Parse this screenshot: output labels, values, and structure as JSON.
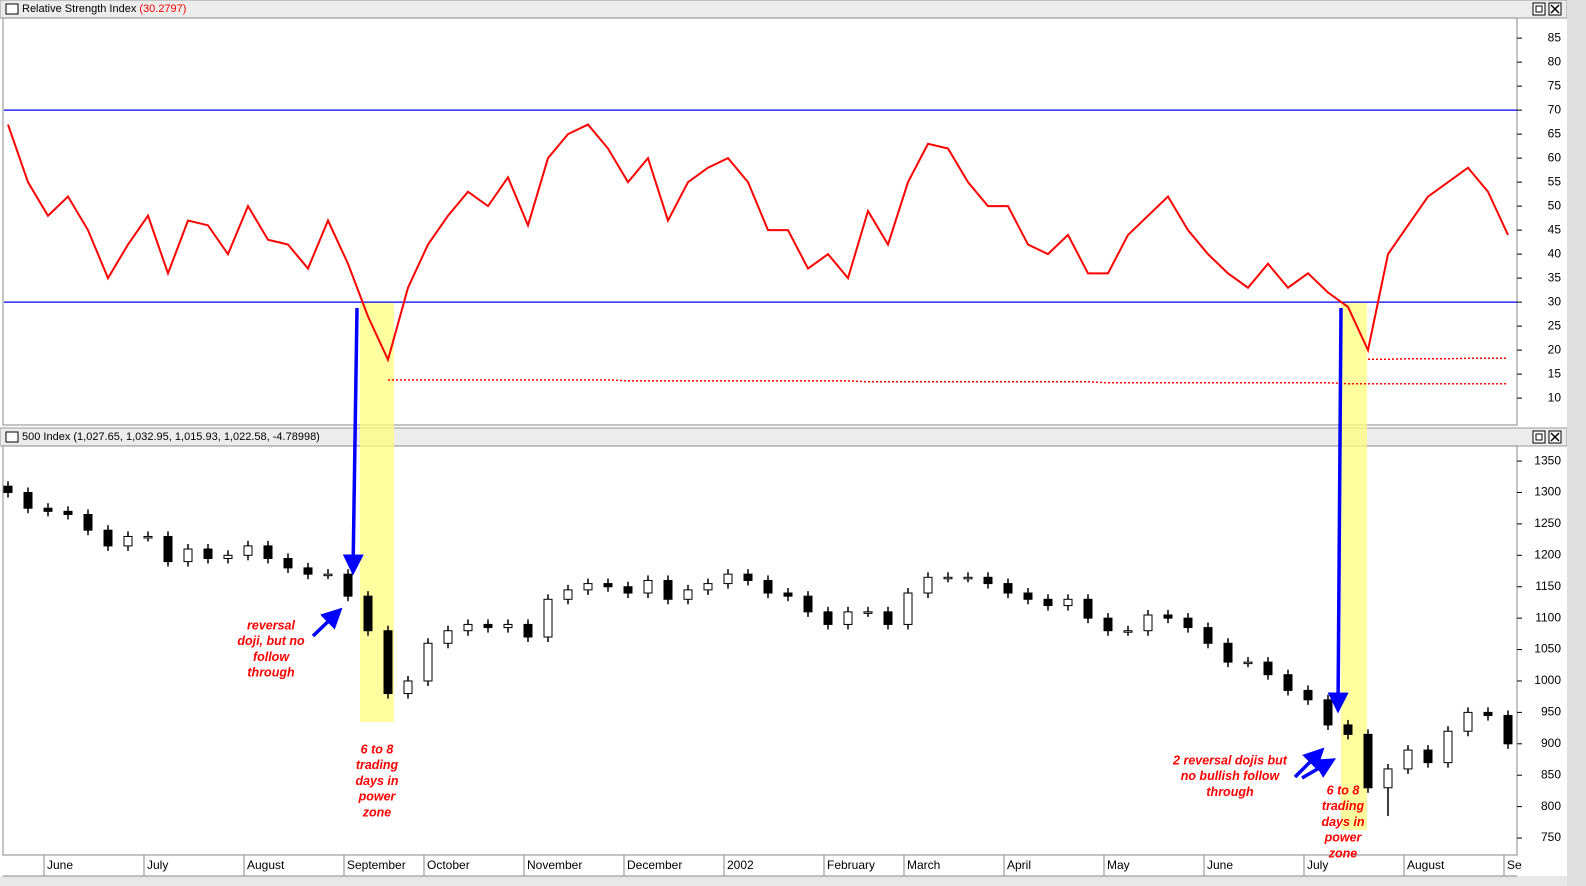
{
  "chart_data": [
    {
      "type": "line",
      "title": "Relative Strength Index",
      "title_value": "(30.2797)",
      "series": [
        {
          "color": "#ff0000",
          "values": [
            67,
            55,
            48,
            52,
            45,
            35,
            42,
            48,
            36,
            47,
            46,
            40,
            50,
            43,
            42,
            37,
            47,
            38,
            27,
            18,
            33,
            42,
            48,
            53,
            50,
            56,
            46,
            60,
            65,
            67,
            62,
            55,
            60,
            47,
            55,
            58,
            60,
            55,
            45,
            45,
            37,
            40,
            35,
            49,
            42,
            55,
            63,
            62,
            55,
            50,
            50,
            42,
            40,
            44,
            36,
            36,
            44,
            48,
            52,
            45,
            40,
            36,
            33,
            38,
            33,
            36,
            32,
            29,
            20,
            40,
            46,
            52,
            55,
            58,
            53,
            44
          ]
        }
      ],
      "trendlines": [
        {
          "color": "#ff0000",
          "values": [
            null,
            null,
            null,
            null,
            null,
            null,
            null,
            null,
            null,
            null,
            null,
            null,
            null,
            null,
            null,
            null,
            null,
            null,
            null,
            13.8,
            13.8,
            13.8,
            13.8,
            13.8,
            13.8,
            13.8,
            13.8,
            13.8,
            13.8,
            13.8,
            13.8,
            13.6,
            13.6,
            13.6,
            13.6,
            13.6,
            13.6,
            13.6,
            13.6,
            13.6,
            13.6,
            13.6,
            13.6,
            13.4,
            13.4,
            13.4,
            13.4,
            13.4,
            13.4,
            13.4,
            13.4,
            13.4,
            13.4,
            13.4,
            13.4,
            13.2,
            13.2,
            13.2,
            13.2,
            13.2,
            13.2,
            13.2,
            13.2,
            13.2,
            13.2,
            13.2,
            13.2,
            13.0,
            13.0,
            13.0,
            13.0,
            13.0,
            13.0,
            13.0,
            13.0,
            13.0
          ]
        },
        {
          "color": "#ff0000",
          "values": [
            null,
            null,
            null,
            null,
            null,
            null,
            null,
            null,
            null,
            null,
            null,
            null,
            null,
            null,
            null,
            null,
            null,
            null,
            null,
            null,
            null,
            null,
            null,
            null,
            null,
            null,
            null,
            null,
            null,
            null,
            null,
            null,
            null,
            null,
            null,
            null,
            null,
            null,
            null,
            null,
            null,
            null,
            null,
            null,
            null,
            null,
            null,
            null,
            null,
            null,
            null,
            null,
            null,
            null,
            null,
            null,
            null,
            null,
            null,
            null,
            null,
            null,
            null,
            null,
            null,
            null,
            null,
            null,
            18.1,
            18.1,
            18.2,
            18.2,
            18.2,
            18.3,
            18.3,
            18.3
          ]
        }
      ],
      "reference_lines": [
        {
          "value": 70,
          "color": "#0000ff"
        },
        {
          "value": 30,
          "color": "#0000ff"
        }
      ],
      "ylim": [
        4.4,
        89.2
      ],
      "yticks": [
        10,
        15,
        20,
        25,
        30,
        35,
        40,
        45,
        50,
        55,
        60,
        65,
        70,
        75,
        80,
        85
      ]
    },
    {
      "type": "candlestick",
      "title": "500 Index (1,027.65, 1,032.95, 1,015.93, 1,022.58, -4.78998)",
      "categories": [
        null,
        null,
        "June",
        null,
        null,
        null,
        null,
        "July",
        null,
        null,
        null,
        null,
        "August",
        null,
        null,
        null,
        null,
        "September",
        null,
        null,
        null,
        "October",
        null,
        null,
        null,
        null,
        "November",
        null,
        null,
        null,
        null,
        "December",
        null,
        null,
        null,
        null,
        "2002",
        null,
        null,
        null,
        null,
        "February",
        null,
        null,
        null,
        "March",
        null,
        null,
        null,
        null,
        "April",
        null,
        null,
        null,
        null,
        "May",
        null,
        null,
        null,
        null,
        "June",
        null,
        null,
        null,
        null,
        "July",
        null,
        null,
        null,
        null,
        "August",
        null,
        null,
        null,
        null,
        "Se"
      ],
      "open": [
        1310,
        1300,
        1275,
        1270,
        1265,
        1240,
        1215,
        1230,
        1230,
        1190,
        1210,
        1195,
        1200,
        1215,
        1195,
        1180,
        1170,
        1170,
        1135,
        1080,
        980,
        1000,
        1060,
        1080,
        1090,
        1085,
        1090,
        1070,
        1130,
        1145,
        1155,
        1150,
        1140,
        1160,
        1130,
        1145,
        1155,
        1170,
        1160,
        1140,
        1135,
        1110,
        1090,
        1110,
        1110,
        1090,
        1140,
        1165,
        1165,
        1165,
        1155,
        1140,
        1130,
        1120,
        1130,
        1100,
        1080,
        1080,
        1105,
        1100,
        1085,
        1060,
        1030,
        1030,
        1010,
        985,
        970,
        930,
        915,
        830,
        860,
        890,
        870,
        920,
        950,
        945
      ],
      "high": [
        1318,
        1308,
        1283,
        1278,
        1273,
        1248,
        1238,
        1238,
        1238,
        1218,
        1218,
        1208,
        1223,
        1223,
        1203,
        1188,
        1178,
        1178,
        1143,
        1088,
        1008,
        1068,
        1088,
        1098,
        1098,
        1098,
        1098,
        1138,
        1153,
        1163,
        1163,
        1158,
        1168,
        1168,
        1153,
        1163,
        1178,
        1178,
        1168,
        1148,
        1143,
        1118,
        1118,
        1118,
        1118,
        1148,
        1173,
        1173,
        1173,
        1173,
        1163,
        1148,
        1138,
        1138,
        1138,
        1108,
        1088,
        1113,
        1113,
        1108,
        1093,
        1068,
        1038,
        1038,
        1018,
        993,
        978,
        938,
        923,
        868,
        898,
        898,
        928,
        958,
        958,
        953
      ],
      "low": [
        1292,
        1267,
        1262,
        1257,
        1232,
        1207,
        1207,
        1222,
        1182,
        1182,
        1187,
        1187,
        1192,
        1187,
        1172,
        1162,
        1162,
        1127,
        1072,
        972,
        972,
        992,
        1052,
        1072,
        1077,
        1077,
        1062,
        1062,
        1122,
        1137,
        1142,
        1132,
        1132,
        1122,
        1122,
        1137,
        1147,
        1152,
        1132,
        1127,
        1102,
        1082,
        1082,
        1102,
        1082,
        1082,
        1132,
        1157,
        1157,
        1147,
        1132,
        1122,
        1112,
        1112,
        1092,
        1072,
        1072,
        1072,
        1092,
        1077,
        1052,
        1022,
        1022,
        1002,
        977,
        962,
        922,
        907,
        822,
        785,
        852,
        862,
        862,
        912,
        937,
        892
      ],
      "close": [
        1300,
        1275,
        1270,
        1265,
        1240,
        1215,
        1230,
        1230,
        1190,
        1210,
        1195,
        1200,
        1215,
        1195,
        1180,
        1170,
        1170,
        1135,
        1080,
        980,
        1000,
        1060,
        1080,
        1090,
        1085,
        1090,
        1070,
        1130,
        1145,
        1155,
        1150,
        1140,
        1160,
        1130,
        1145,
        1155,
        1170,
        1160,
        1140,
        1135,
        1110,
        1090,
        1110,
        1110,
        1090,
        1140,
        1165,
        1165,
        1165,
        1155,
        1140,
        1130,
        1120,
        1130,
        1100,
        1080,
        1080,
        1105,
        1100,
        1085,
        1060,
        1030,
        1030,
        1010,
        985,
        970,
        930,
        915,
        830,
        860,
        890,
        870,
        920,
        950,
        945,
        900
      ],
      "up_color": "#ffffff",
      "down_color": "#000000",
      "ylim": [
        723,
        1374
      ],
      "yticks": [
        750,
        800,
        850,
        900,
        950,
        1000,
        1050,
        1100,
        1150,
        1200,
        1250,
        1300,
        1350
      ],
      "annotations": [
        {
          "lines": [
            "reversal",
            "doji, but no",
            "follow",
            "through"
          ]
        },
        {
          "lines": [
            "6 to 8",
            "trading",
            "days in",
            "power",
            "zone"
          ]
        },
        {
          "lines": [
            "2 reversal dojis but",
            "no bullish follow",
            "through"
          ]
        },
        {
          "lines": [
            "6 to 8",
            "trading",
            "days in",
            "power",
            "zone"
          ]
        }
      ]
    }
  ]
}
